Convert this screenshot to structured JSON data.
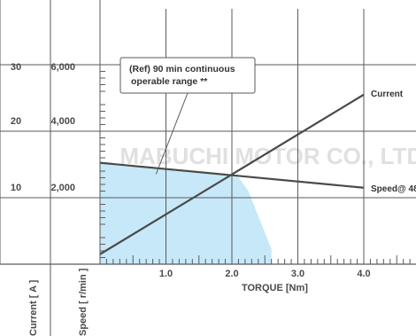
{
  "chart_data": {
    "type": "line",
    "xlabel": "TORQUE [Nm]",
    "x_ticks": [
      "1.0",
      "2.0",
      "3.0",
      "4.0"
    ],
    "xlim": [
      0,
      4.8
    ],
    "current_axis": {
      "label": "Current [ A ]",
      "ticks": [
        "10",
        "20",
        "30"
      ],
      "ylim": [
        0,
        30
      ]
    },
    "speed_axis": {
      "label": "Speed [ r/min ]",
      "ticks": [
        "2,000",
        "4,000",
        "6,000"
      ],
      "ylim": [
        0,
        6000
      ]
    },
    "grid": true,
    "series": [
      {
        "name": "Current",
        "axis": "current",
        "color": "#4a4a4a",
        "x": [
          0,
          4.0
        ],
        "y": [
          1.5,
          25.5
        ]
      },
      {
        "name": "Speed@ 48",
        "axis": "speed",
        "color": "#4a4a4a",
        "x": [
          0,
          4.0
        ],
        "y": [
          3050,
          2300
        ]
      }
    ],
    "operable_region": {
      "color": "#c7e8f8",
      "points": [
        [
          0,
          0
        ],
        [
          0,
          3050
        ],
        [
          2.1,
          2620
        ],
        [
          2.25,
          2200
        ],
        [
          2.45,
          1200
        ],
        [
          2.6,
          450
        ],
        [
          2.6,
          0
        ]
      ]
    },
    "annotation": {
      "lines": [
        "(Ref) 90 min continuous",
        "operable range **"
      ],
      "points_to": [
        0.85,
        2710
      ]
    },
    "watermark": "MABUCHI MOTOR CO., LTD"
  }
}
